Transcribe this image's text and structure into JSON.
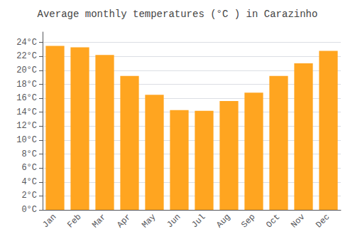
{
  "chart_data": {
    "type": "bar",
    "title": "Average monthly temperatures (°C ) in Carazinho",
    "categories": [
      "Jan",
      "Feb",
      "Mar",
      "Apr",
      "May",
      "Jun",
      "Jul",
      "Aug",
      "Sep",
      "Oct",
      "Nov",
      "Dec"
    ],
    "values": [
      23.5,
      23.3,
      22.2,
      19.2,
      16.5,
      14.3,
      14.2,
      15.6,
      16.8,
      19.2,
      21.0,
      22.8
    ],
    "color": "#FFA520",
    "ylim": [
      0,
      25.5
    ],
    "yticks": [
      {
        "value": 0,
        "label": "0°C"
      },
      {
        "value": 2,
        "label": "2°C"
      },
      {
        "value": 4,
        "label": "4°C"
      },
      {
        "value": 6,
        "label": "6°C"
      },
      {
        "value": 8,
        "label": "8°C"
      },
      {
        "value": 10,
        "label": "10°C"
      },
      {
        "value": 12,
        "label": "12°C"
      },
      {
        "value": 14,
        "label": "14°C"
      },
      {
        "value": 16,
        "label": "16°C"
      },
      {
        "value": 18,
        "label": "18°C"
      },
      {
        "value": 20,
        "label": "20°C"
      },
      {
        "value": 22,
        "label": "22°C"
      },
      {
        "value": 24,
        "label": "24°C"
      }
    ],
    "grid": true
  }
}
